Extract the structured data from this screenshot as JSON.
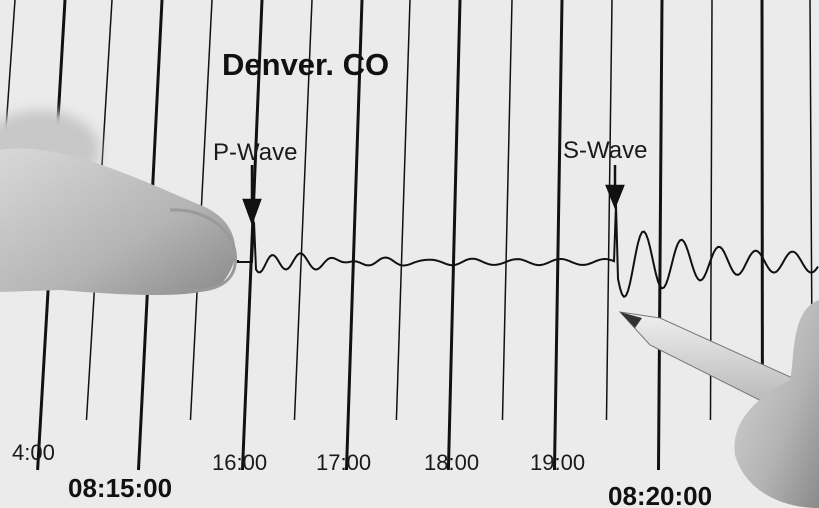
{
  "title": "Denver. CO",
  "annotations": [
    {
      "label": "P-Wave"
    },
    {
      "label": "S-Wave"
    }
  ],
  "time_labels": [
    "4:00",
    "16:00",
    "17:00",
    "18:00",
    "19:00"
  ],
  "minute_labels": [
    "08:15:00",
    "08:20:00"
  ]
}
